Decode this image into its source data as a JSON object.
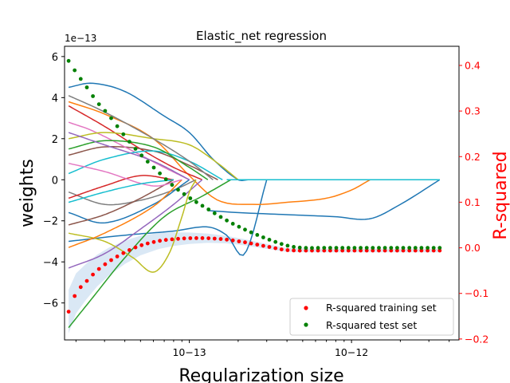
{
  "chart_data": {
    "type": "line",
    "title": "Elastic_net regression",
    "xlabel": "Regularization size",
    "ylabel": "weights",
    "ylabel_right": "R-squared",
    "x_scale": "log",
    "xlim": [
      1.7e-14,
      4.6e-12
    ],
    "x_ticks": [
      {
        "value": 1e-13,
        "label": "10−13"
      },
      {
        "value": 1e-12,
        "label": "10−12"
      }
    ],
    "y_multiplier": "1e−13",
    "ylim": [
      -7.8,
      6.5
    ],
    "y_ticks": [
      {
        "value": 6,
        "label": "6"
      },
      {
        "value": 4,
        "label": "4"
      },
      {
        "value": 2,
        "label": "2"
      },
      {
        "value": 0,
        "label": "0"
      },
      {
        "value": -2,
        "label": "−2"
      },
      {
        "value": -4,
        "label": "−4"
      },
      {
        "value": -6,
        "label": "−6"
      }
    ],
    "ylim_right": [
      -0.202,
      0.442
    ],
    "y_ticks_right": [
      {
        "value": 0.4,
        "label": "0.4"
      },
      {
        "value": 0.3,
        "label": "0.3"
      },
      {
        "value": 0.2,
        "label": "0.2"
      },
      {
        "value": 0.1,
        "label": "0.1"
      },
      {
        "value": 0.0,
        "label": "0.0"
      },
      {
        "value": -0.1,
        "label": "−0.1"
      },
      {
        "value": -0.2,
        "label": "−0.2"
      }
    ],
    "legend_position": "lower-right",
    "legend": [
      {
        "label": "R-squared training set",
        "color": "#ff0000"
      },
      {
        "label": "R-squared test set",
        "color": "#008000"
      }
    ],
    "colors": {
      "right_axis": "#ff0000",
      "band": "#c6dbef",
      "cycle": [
        "#1f77b4",
        "#ff7f0e",
        "#2ca02c",
        "#d62728",
        "#9467bd",
        "#8c564b",
        "#e377c2",
        "#7f7f7f",
        "#bcbd22",
        "#17becf"
      ]
    },
    "series": [
      {
        "name": "R-squared training set",
        "axis": "right",
        "style": "dots",
        "color": "#ff0000",
        "x": [
          1.8e-14,
          2e-14,
          2.3e-14,
          2.7e-14,
          3.2e-14,
          4e-14,
          5e-14,
          6.5e-14,
          8e-14,
          1e-13,
          1.3e-13,
          1.7e-13,
          2.2e-13,
          3e-13,
          4e-13,
          6e-13,
          1e-12,
          2e-12,
          3.5e-12
        ],
        "y": [
          -0.14,
          -0.1,
          -0.075,
          -0.05,
          -0.03,
          -0.01,
          0.005,
          0.015,
          0.019,
          0.021,
          0.021,
          0.018,
          0.012,
          0.003,
          -0.005,
          -0.006,
          -0.006,
          -0.006,
          -0.006
        ]
      },
      {
        "name": "R-squared test set",
        "axis": "right",
        "style": "dots",
        "color": "#008000",
        "x": [
          1.8e-14,
          2e-14,
          2.3e-14,
          2.7e-14,
          3.2e-14,
          4e-14,
          5e-14,
          6.5e-14,
          8e-14,
          1e-13,
          1.3e-13,
          1.7e-13,
          2.2e-13,
          3e-13,
          4e-13,
          5e-13,
          7e-13,
          1e-12,
          2e-12,
          3.5e-12
        ],
        "y": [
          0.41,
          0.385,
          0.355,
          0.32,
          0.29,
          0.245,
          0.205,
          0.165,
          0.135,
          0.11,
          0.085,
          0.06,
          0.04,
          0.02,
          0.005,
          0.0,
          0.0,
          0.0,
          0.0,
          0.0
        ]
      },
      {
        "name": "",
        "axis": "left",
        "color": "#1f77b4",
        "x": [
          1.8e-14,
          2.5e-14,
          4e-14,
          7e-14,
          1e-13,
          1.4e-13,
          2e-13,
          2.3e-13
        ],
        "y": [
          4.5,
          4.7,
          4.3,
          3.1,
          2.3,
          1.0,
          0.0,
          0.0
        ]
      },
      {
        "name": "",
        "axis": "left",
        "color": "#1f77b4",
        "x": [
          1.8e-14,
          4e-14,
          8e-14,
          1.3e-13,
          1.7e-13,
          2.2e-13,
          3e-13
        ],
        "y": [
          -3.0,
          -2.7,
          -2.5,
          -2.3,
          -2.7,
          -3.6,
          0.0
        ]
      },
      {
        "name": "",
        "axis": "left",
        "color": "#1f77b4",
        "x": [
          1.3e-13,
          2e-13,
          4e-13,
          8e-13,
          1.3e-12,
          2e-12,
          3.5e-12
        ],
        "y": [
          -1.5,
          -1.6,
          -1.7,
          -1.8,
          -1.9,
          -1.2,
          0.0
        ]
      },
      {
        "name": "",
        "axis": "left",
        "color": "#ff7f0e",
        "x": [
          1.8e-14,
          3e-14,
          6e-14,
          1e-13,
          1.5e-13,
          2.5e-13,
          4e-13,
          7e-13,
          1e-12,
          1.3e-12
        ],
        "y": [
          3.8,
          3.2,
          2.0,
          0.2,
          -1.0,
          -1.2,
          -1.1,
          -0.9,
          -0.5,
          0.0
        ]
      },
      {
        "name": "",
        "axis": "left",
        "color": "#2ca02c",
        "x": [
          1.8e-14,
          2.5e-14,
          4e-14,
          7e-14,
          1.2e-13,
          1.8e-13
        ],
        "y": [
          -7.2,
          -5.8,
          -3.8,
          -1.8,
          -0.8,
          0.0
        ]
      },
      {
        "name": "",
        "axis": "left",
        "color": "#d62728",
        "x": [
          1.8e-14,
          3e-14,
          5e-14,
          8e-14,
          1.2e-13
        ],
        "y": [
          3.6,
          2.6,
          1.5,
          0.6,
          0.0
        ]
      },
      {
        "name": "",
        "axis": "left",
        "color": "#9467bd",
        "x": [
          1.8e-14,
          3e-14,
          5e-14,
          8e-14,
          1.2e-13
        ],
        "y": [
          -4.3,
          -3.6,
          -2.4,
          -1.2,
          0.0
        ]
      },
      {
        "name": "",
        "axis": "left",
        "color": "#8c564b",
        "x": [
          1.8e-14,
          3e-14,
          6e-14,
          1e-13,
          1.5e-13
        ],
        "y": [
          1.2,
          1.6,
          1.4,
          0.7,
          0.0
        ]
      },
      {
        "name": "",
        "axis": "left",
        "color": "#e377c2",
        "x": [
          1.8e-14,
          2.5e-14,
          4e-14,
          7e-14,
          1e-13
        ],
        "y": [
          2.8,
          2.4,
          1.6,
          0.6,
          0.0
        ]
      },
      {
        "name": "",
        "axis": "left",
        "color": "#7f7f7f",
        "x": [
          1.8e-14,
          3e-14,
          5e-14,
          8e-14,
          1.1e-13
        ],
        "y": [
          -0.6,
          -1.2,
          -1.0,
          -0.5,
          0.0
        ]
      },
      {
        "name": "",
        "axis": "left",
        "color": "#bcbd22",
        "x": [
          1.8e-14,
          3e-14,
          4.5e-14,
          6e-14,
          7.5e-14,
          9e-14,
          1e-13,
          1.1e-13
        ],
        "y": [
          -2.6,
          -3.0,
          -3.8,
          -4.5,
          -3.6,
          -1.8,
          -0.6,
          0.0
        ]
      },
      {
        "name": "",
        "axis": "left",
        "color": "#bcbd22",
        "x": [
          1.8e-14,
          3e-14,
          6e-14,
          1e-13,
          1.5e-13,
          2e-13
        ],
        "y": [
          2.0,
          2.3,
          2.0,
          1.7,
          0.8,
          0.0
        ]
      },
      {
        "name": "",
        "axis": "left",
        "color": "#17becf",
        "x": [
          1.8e-14,
          3e-14,
          6e-14,
          1e-13,
          1.6e-13
        ],
        "y": [
          0.3,
          1.0,
          1.4,
          0.9,
          0.0
        ]
      },
      {
        "name": "",
        "axis": "left",
        "color": "#1f77b4",
        "x": [
          1.8e-14,
          3e-14,
          6e-14,
          1e-13
        ],
        "y": [
          -1.6,
          -2.1,
          -1.2,
          0.0
        ]
      },
      {
        "name": "",
        "axis": "left",
        "color": "#ff7f0e",
        "x": [
          1.8e-14,
          3e-14,
          6e-14,
          9e-14
        ],
        "y": [
          -3.3,
          -2.6,
          -1.3,
          0.0
        ]
      },
      {
        "name": "",
        "axis": "left",
        "color": "#2ca02c",
        "x": [
          1.8e-14,
          3e-14,
          6e-14,
          1e-13,
          1.3e-13
        ],
        "y": [
          1.5,
          1.9,
          1.6,
          0.6,
          0.0
        ]
      },
      {
        "name": "",
        "axis": "left",
        "color": "#d62728",
        "x": [
          1.8e-14,
          3e-14,
          5e-14,
          8e-14
        ],
        "y": [
          -0.9,
          -0.3,
          0.2,
          0.0
        ]
      },
      {
        "name": "",
        "axis": "left",
        "color": "#9467bd",
        "x": [
          1.8e-14,
          3e-14,
          6e-14,
          1e-13
        ],
        "y": [
          2.3,
          1.7,
          0.9,
          0.0
        ]
      },
      {
        "name": "",
        "axis": "left",
        "color": "#8c564b",
        "x": [
          1.8e-14,
          3e-14,
          5e-14,
          8e-14
        ],
        "y": [
          -2.2,
          -1.7,
          -0.9,
          0.0
        ]
      },
      {
        "name": "",
        "axis": "left",
        "color": "#e377c2",
        "x": [
          1.8e-14,
          3e-14,
          6e-14,
          9e-14
        ],
        "y": [
          0.8,
          0.4,
          -0.3,
          0.0
        ]
      },
      {
        "name": "",
        "axis": "left",
        "color": "#7f7f7f",
        "x": [
          1.8e-14,
          3e-14,
          6e-14,
          1e-13,
          1.4e-13
        ],
        "y": [
          4.1,
          3.3,
          2.0,
          0.9,
          0.0
        ]
      },
      {
        "name": "",
        "axis": "left",
        "color": "#17becf",
        "x": [
          1.8e-14,
          3e-14,
          5e-14,
          8e-14
        ],
        "y": [
          -1.1,
          -0.6,
          -0.2,
          0.0
        ]
      },
      {
        "name": "",
        "axis": "left",
        "color": "#1f77b4",
        "x": [
          1.7e-13,
          3.5e-12
        ],
        "y": [
          0.0,
          0.0
        ]
      },
      {
        "name": "",
        "axis": "left",
        "color": "#17becf",
        "x": [
          1.7e-13,
          3.5e-12
        ],
        "y": [
          0.0,
          0.0
        ]
      }
    ]
  }
}
